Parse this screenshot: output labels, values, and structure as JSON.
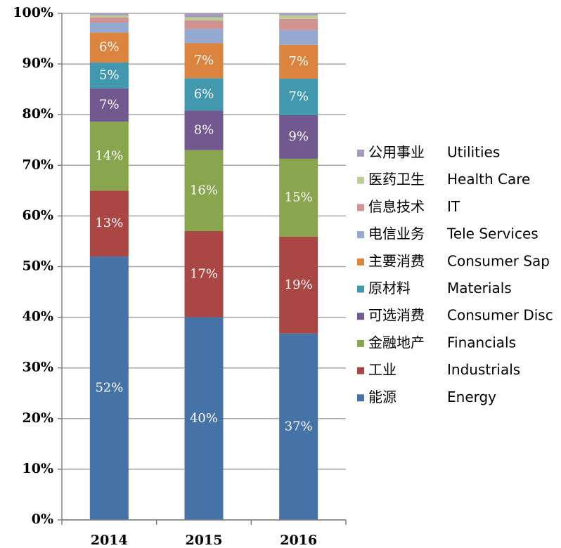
{
  "chart_data": {
    "type": "stacked_bar",
    "categories": [
      "2014",
      "2015",
      "2016"
    ],
    "ylim": [
      0,
      100
    ],
    "yticks": [
      {
        "value": 0,
        "label": "0%"
      },
      {
        "value": 10,
        "label": "10%"
      },
      {
        "value": 20,
        "label": "20%"
      },
      {
        "value": 30,
        "label": "30%"
      },
      {
        "value": 40,
        "label": "40%"
      },
      {
        "value": 50,
        "label": "50%"
      },
      {
        "value": 60,
        "label": "60%"
      },
      {
        "value": 70,
        "label": "70%"
      },
      {
        "value": 80,
        "label": "80%"
      },
      {
        "value": 90,
        "label": "90%"
      },
      {
        "value": 100,
        "label": "100%"
      }
    ],
    "grid": true,
    "legend": "right",
    "series": [
      {
        "name": "能源",
        "name_en": "Energy",
        "color": "#4572a7",
        "values": [
          52,
          40,
          36.8
        ],
        "value_labels": [
          "52%",
          "40%",
          "37%"
        ]
      },
      {
        "name": "工业",
        "name_en": "Industrials",
        "color": "#aa4643",
        "values": [
          13,
          17,
          19.1
        ],
        "value_labels": [
          "13%",
          "17%",
          "19%"
        ]
      },
      {
        "name": "金融地产",
        "name_en": "Financials",
        "color": "#89a54e",
        "values": [
          13.6,
          16,
          15.4
        ],
        "value_labels": [
          "14%",
          "16%",
          "15%"
        ]
      },
      {
        "name": "可选消费",
        "name_en": "Consumer Disc",
        "color": "#71588f",
        "values": [
          6.6,
          7.8,
          8.6
        ],
        "value_labels": [
          "7%",
          "8%",
          "9%"
        ]
      },
      {
        "name": "原材料",
        "name_en": "Materials",
        "color": "#4198af",
        "values": [
          5.1,
          6.4,
          7.2
        ],
        "value_labels": [
          "5%",
          "6%",
          "7%"
        ]
      },
      {
        "name": "主要消费",
        "name_en": "Consumer Sap",
        "color": "#db843d",
        "values": [
          5.9,
          6.9,
          6.7
        ],
        "value_labels": [
          "6%",
          "7%",
          "7%"
        ]
      },
      {
        "name": "电信业务",
        "name_en": "Tele Services",
        "color": "#93a9cf",
        "values": [
          2.0,
          2.8,
          2.9
        ],
        "value_labels": [
          null,
          null,
          null
        ]
      },
      {
        "name": "信息技术",
        "name_en": "IT",
        "color": "#d19392",
        "values": [
          1.0,
          1.7,
          2.2
        ],
        "value_labels": [
          null,
          null,
          null
        ]
      },
      {
        "name": "医药卫生",
        "name_en": "Health Care",
        "color": "#b9cd96",
        "values": [
          0.4,
          0.6,
          0.7
        ],
        "value_labels": [
          null,
          null,
          null
        ]
      },
      {
        "name": "公用事业",
        "name_en": "Utilities",
        "color": "#a99bbd",
        "values": [
          0.4,
          0.8,
          0.4
        ],
        "value_labels": [
          null,
          null,
          null
        ]
      }
    ]
  }
}
